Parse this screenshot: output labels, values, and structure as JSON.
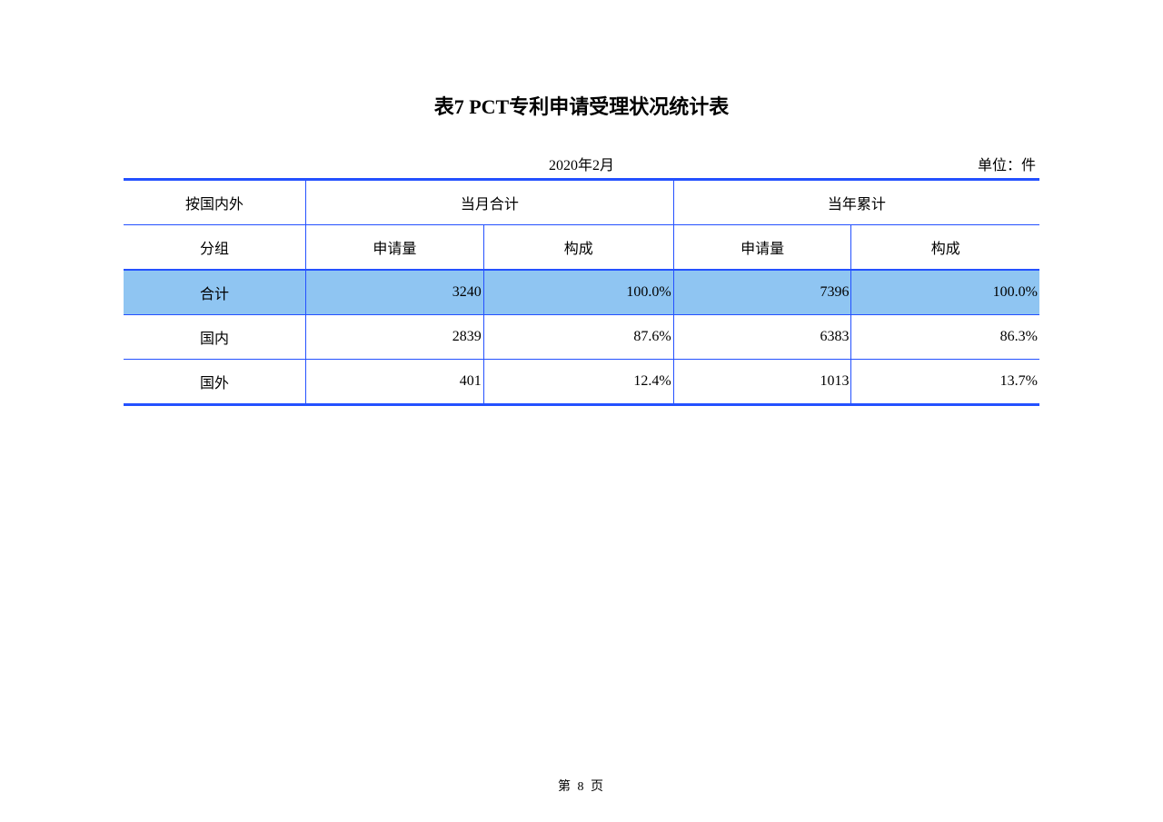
{
  "title": "表7  PCT专利申请受理状况统计表",
  "period": "2020年2月",
  "unit": "单位：件",
  "table": {
    "type": "table",
    "border_color": "#2451ff",
    "highlight_color": "#8fc5f2",
    "background_color": "#ffffff",
    "text_color": "#000000",
    "header1": {
      "col1": "按国内外",
      "col2": "当月合计",
      "col3": "当年累计"
    },
    "header2": {
      "col1": "分组",
      "col2": "申请量",
      "col3": "构成",
      "col4": "申请量",
      "col5": "构成"
    },
    "rows": [
      {
        "label": "合计",
        "month_count": "3240",
        "month_pct": "100.0%",
        "year_count": "7396",
        "year_pct": "100.0%",
        "highlight": true
      },
      {
        "label": "国内",
        "month_count": "2839",
        "month_pct": "87.6%",
        "year_count": "6383",
        "year_pct": "86.3%",
        "highlight": false
      },
      {
        "label": "国外",
        "month_count": "401",
        "month_pct": "12.4%",
        "year_count": "1013",
        "year_pct": "13.7%",
        "highlight": false
      }
    ]
  },
  "page_number": "第  8  页"
}
